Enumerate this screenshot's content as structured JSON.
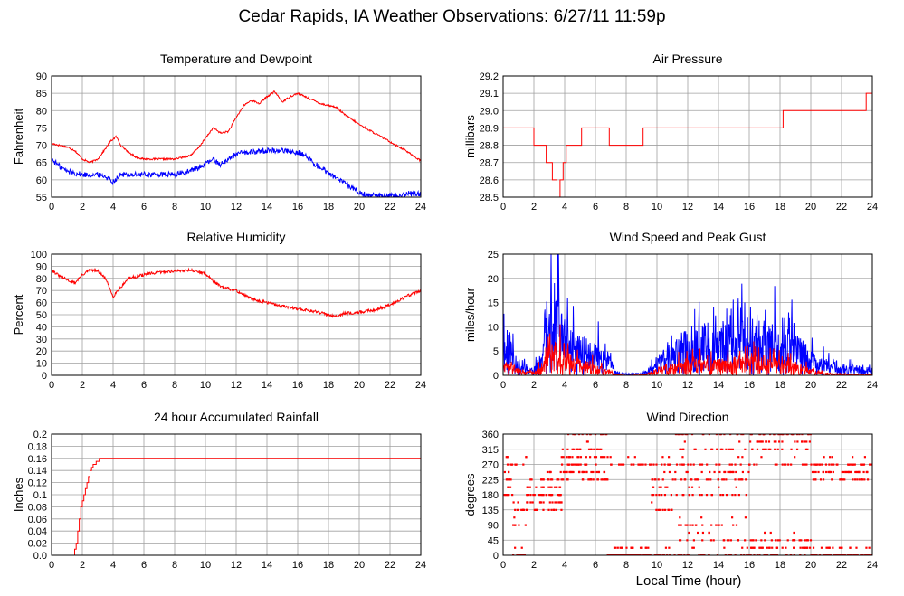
{
  "title": "Cedar Rapids, IA Weather Observations: 6/27/11 11:59p",
  "x_axis_label": "Local Time (hour)",
  "colors": {
    "red": "#ff0000",
    "blue": "#0000ff",
    "grid": "#a0a0a0"
  },
  "chart_data": [
    {
      "id": "temp",
      "type": "line",
      "title": "Temperature and Dewpoint",
      "ylabel": "Fahrenheit",
      "xlim": [
        0,
        24
      ],
      "ylim": [
        55,
        90
      ],
      "yticks": [
        "55",
        "60",
        "65",
        "70",
        "75",
        "80",
        "85",
        "90"
      ],
      "xticks": [
        "0",
        "2",
        "4",
        "6",
        "8",
        "10",
        "12",
        "14",
        "16",
        "18",
        "20",
        "22",
        "24"
      ],
      "grid": true,
      "series": [
        {
          "color": "#ff0000",
          "noise": 0.25,
          "x": [
            0,
            0.5,
            1,
            1.5,
            2,
            2.5,
            3,
            3.5,
            3.8,
            4.2,
            4.5,
            5,
            5.5,
            6,
            7,
            8,
            9,
            9.5,
            10,
            10.5,
            11,
            11.5,
            12,
            12.5,
            13,
            13.5,
            14,
            14.5,
            15,
            15.5,
            16,
            16.5,
            17,
            17.5,
            18,
            18.5,
            19,
            20,
            21,
            22,
            23,
            24
          ],
          "y": [
            70.5,
            70,
            69.5,
            68.5,
            66,
            65,
            66,
            69,
            71,
            72.5,
            70,
            68,
            66.5,
            66,
            66,
            66,
            67,
            69,
            72,
            75,
            73.5,
            74,
            78,
            81.5,
            83,
            82,
            84,
            85.5,
            82.5,
            84,
            85,
            84,
            83,
            82,
            81.5,
            81,
            79,
            76,
            73.5,
            71,
            68.5,
            65.5
          ]
        },
        {
          "color": "#0000ff",
          "noise": 0.8,
          "x": [
            0,
            0.5,
            1,
            1.5,
            2,
            3,
            3.5,
            4,
            4.5,
            5,
            6,
            7,
            8,
            9,
            10,
            10.5,
            11,
            12,
            13,
            14,
            15,
            16,
            16.5,
            17,
            18,
            19,
            20,
            20.5,
            21,
            22,
            23,
            24
          ],
          "y": [
            66,
            64,
            62.5,
            62,
            61.5,
            61.5,
            61,
            59.5,
            61.5,
            61.5,
            61.5,
            61.5,
            61.5,
            62.5,
            64.5,
            66,
            64.5,
            67.5,
            68,
            68.5,
            68.5,
            68,
            67,
            65,
            62,
            59,
            56.5,
            55.5,
            55.5,
            55.5,
            56,
            56
          ]
        }
      ]
    },
    {
      "id": "pressure",
      "type": "line",
      "title": "Air Pressure",
      "ylabel": "millibars",
      "xlim": [
        0,
        24
      ],
      "ylim": [
        28.5,
        29.2
      ],
      "yticks": [
        "28.5",
        "28.6",
        "28.7",
        "28.8",
        "28.9",
        "29.0",
        "29.1",
        "29.2"
      ],
      "xticks": [
        "0",
        "2",
        "4",
        "6",
        "8",
        "10",
        "12",
        "14",
        "16",
        "18",
        "20",
        "22",
        "24"
      ],
      "grid": true,
      "series": [
        {
          "color": "#ff0000",
          "step": true,
          "x": [
            0,
            2,
            2.8,
            3.2,
            3.5,
            3.7,
            3.9,
            4.1,
            4.2,
            5.1,
            6.9,
            9.1,
            18.2,
            23.6,
            24
          ],
          "y": [
            28.9,
            28.8,
            28.7,
            28.6,
            28.5,
            28.6,
            28.7,
            28.8,
            28.8,
            28.9,
            28.8,
            28.9,
            29.0,
            29.1,
            29.1
          ]
        }
      ]
    },
    {
      "id": "humidity",
      "type": "line",
      "title": "Relative Humidity",
      "ylabel": "Percent",
      "xlim": [
        0,
        24
      ],
      "ylim": [
        0,
        100
      ],
      "yticks": [
        "0",
        "10",
        "20",
        "30",
        "40",
        "50",
        "60",
        "70",
        "80",
        "90",
        "100"
      ],
      "xticks": [
        "0",
        "2",
        "4",
        "6",
        "8",
        "10",
        "12",
        "14",
        "16",
        "18",
        "20",
        "22",
        "24"
      ],
      "grid": true,
      "series": [
        {
          "color": "#ff0000",
          "noise": 1.2,
          "x": [
            0,
            0.5,
            1,
            1.5,
            2,
            2.5,
            3,
            3.5,
            4,
            4.3,
            5,
            6,
            7,
            8,
            9,
            10,
            10.5,
            11,
            12,
            13,
            14,
            15,
            16,
            17,
            18,
            18.5,
            19,
            20,
            21,
            22,
            23,
            24
          ],
          "y": [
            87,
            82,
            79,
            76,
            83,
            87,
            86,
            80,
            65,
            70,
            80,
            83,
            85,
            86,
            87,
            84,
            78,
            73,
            70,
            63,
            60,
            57,
            55,
            53,
            50,
            49,
            51,
            52,
            54,
            58,
            65,
            70
          ]
        }
      ]
    },
    {
      "id": "wind",
      "type": "line",
      "title": "Wind Speed and Peak Gust",
      "ylabel": "miles/hour",
      "xlim": [
        0,
        24
      ],
      "ylim": [
        0,
        25
      ],
      "yticks": [
        "0",
        "5",
        "10",
        "15",
        "20",
        "25"
      ],
      "xticks": [
        "0",
        "2",
        "4",
        "6",
        "8",
        "10",
        "12",
        "14",
        "16",
        "18",
        "20",
        "22",
        "24"
      ],
      "grid": true,
      "series": [
        {
          "color": "#0000ff",
          "spiky": true,
          "seed": 11,
          "x": [
            0,
            0.5,
            1,
            2,
            2.5,
            3,
            3.5,
            4,
            5,
            6,
            7,
            7.5,
            8,
            9,
            9.5,
            10,
            11,
            12,
            13,
            14,
            15,
            16,
            17,
            18,
            19,
            20,
            21,
            22,
            23,
            24
          ],
          "y": [
            5,
            5.5,
            2,
            1,
            3,
            12,
            11,
            7,
            5,
            4,
            2,
            0.3,
            0.2,
            0.3,
            1,
            2.5,
            4,
            6,
            6.5,
            6,
            7,
            7,
            7.5,
            6,
            5.5,
            3,
            2,
            1.5,
            1.2,
            1
          ]
        },
        {
          "color": "#ff0000",
          "spiky": true,
          "seed": 29,
          "x": [
            0,
            0.5,
            1,
            2,
            2.5,
            3,
            3.5,
            4,
            5,
            6,
            7,
            7.5,
            8,
            9,
            9.5,
            10,
            11,
            12,
            13,
            14,
            15,
            16,
            17,
            18,
            19,
            20,
            21,
            22,
            23,
            24
          ],
          "y": [
            1.5,
            1.5,
            0.8,
            0.4,
            1.5,
            3.5,
            4.5,
            3,
            2,
            1.5,
            0.5,
            0.1,
            0,
            0.1,
            0.3,
            1,
            1.5,
            2,
            2.2,
            2,
            2.3,
            2.3,
            2.5,
            2,
            1.8,
            0.8,
            0.3,
            0.2,
            0.1,
            0.1
          ]
        }
      ]
    },
    {
      "id": "rain",
      "type": "line",
      "title": "24 hour Accumulated Rainfall",
      "ylabel": "Inches",
      "xlim": [
        0,
        24
      ],
      "ylim": [
        0,
        0.2
      ],
      "yticks": [
        "0.0",
        "0.02",
        "0.04",
        "0.06",
        "0.08",
        "0.1",
        "0.12",
        "0.14",
        "0.16",
        "0.18",
        "0.2"
      ],
      "xticks": [
        "0",
        "2",
        "4",
        "6",
        "8",
        "10",
        "12",
        "14",
        "16",
        "18",
        "20",
        "22",
        "24"
      ],
      "grid": true,
      "series": [
        {
          "color": "#ff0000",
          "step": true,
          "x": [
            0,
            1.5,
            1.6,
            1.7,
            1.8,
            1.9,
            2.0,
            2.1,
            2.2,
            2.3,
            2.4,
            2.5,
            2.6,
            2.7,
            2.8,
            2.9,
            3.1,
            24
          ],
          "y": [
            0,
            0.01,
            0.02,
            0.04,
            0.06,
            0.08,
            0.09,
            0.1,
            0.11,
            0.12,
            0.13,
            0.14,
            0.145,
            0.15,
            0.15,
            0.155,
            0.16,
            0.16
          ]
        }
      ]
    },
    {
      "id": "direction",
      "type": "scatter",
      "title": "Wind Direction",
      "ylabel": "degrees",
      "xlim": [
        0,
        24
      ],
      "ylim": [
        0,
        360
      ],
      "yticks": [
        "0",
        "45",
        "90",
        "135",
        "180",
        "225",
        "270",
        "315",
        "360"
      ],
      "xticks": [
        "0",
        "2",
        "4",
        "6",
        "8",
        "10",
        "12",
        "14",
        "16",
        "18",
        "20",
        "22",
        "24"
      ],
      "grid": true,
      "series": [
        {
          "color": "#ff0000",
          "scatter": true,
          "seed": 7,
          "segments": [
            [
              0,
              0.6,
              [
                270,
                250,
                225,
                200,
                180
              ]
            ],
            [
              0.6,
              1.5,
              [
                0,
                0,
                135,
                90,
                270
              ]
            ],
            [
              1.5,
              3.8,
              [
                180,
                160,
                135,
                180,
                225,
                200
              ]
            ],
            [
              3.8,
              6.8,
              [
                270,
                225,
                315,
                360,
                290,
                250,
                225
              ]
            ],
            [
              6.8,
              9.5,
              [
                0,
                0,
                0,
                270
              ]
            ],
            [
              9.5,
              11,
              [
                180,
                270,
                0,
                135,
                225
              ]
            ],
            [
              11,
              16,
              [
                270,
                225,
                315,
                360,
                180,
                0,
                45,
                90,
                250
              ]
            ],
            [
              16,
              20,
              [
                360,
                315,
                270,
                0,
                45,
                25,
                340
              ]
            ],
            [
              20,
              24,
              [
                0,
                0,
                0,
                270,
                250,
                225
              ]
            ]
          ]
        }
      ]
    }
  ]
}
